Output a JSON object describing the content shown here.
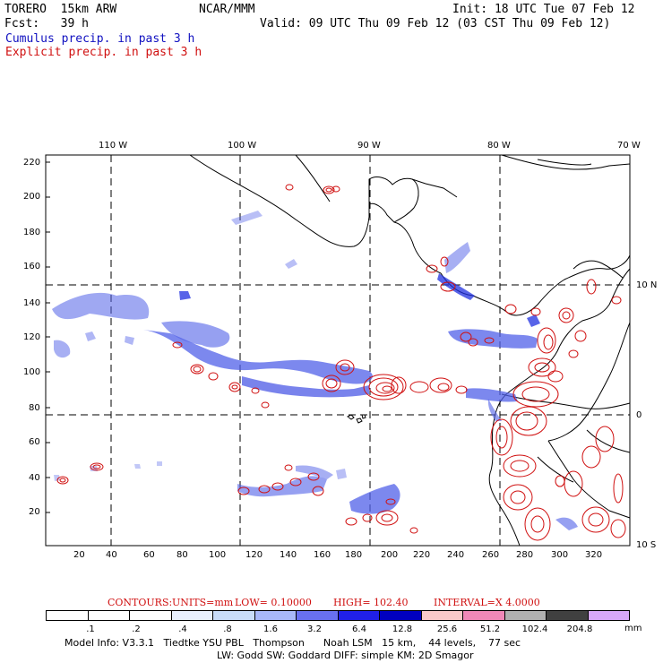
{
  "header": {
    "model": "TORERO  15km ARW",
    "org": "NCAR/MMM",
    "init": "Init: 18 UTC Tue 07 Feb 12",
    "fcst": "Fcst:   39 h",
    "valid": "Valid: 09 UTC Thu 09 Feb 12 (03 CST Thu 09 Feb 12)",
    "cumulus": "Cumulus precip. in past 3 h",
    "explicit": "Explicit precip. in past 3 h"
  },
  "axes": {
    "lon_labels": [
      "110 W",
      "100 W",
      "90 W",
      "80 W",
      "70 W"
    ],
    "lat_labels": [
      "10 N",
      "0",
      "10 S"
    ],
    "y_ticks": [
      "220",
      "200",
      "180",
      "160",
      "140",
      "120",
      "100",
      "80",
      "60",
      "40",
      "20"
    ],
    "x_ticks": [
      "20",
      "40",
      "60",
      "80",
      "100",
      "120",
      "140",
      "160",
      "180",
      "200",
      "220",
      "240",
      "260",
      "280",
      "300",
      "320"
    ]
  },
  "contours": {
    "label": "CONTOURS:",
    "units": "UNITS=mm",
    "low": "LOW= 0.10000",
    "high": "HIGH= 102.40",
    "interval": "INTERVAL=X 4.0000"
  },
  "colorbar": {
    "labels": [
      ".1",
      ".2",
      ".4",
      ".8",
      "1.6",
      "3.2",
      "6.4",
      "12.8",
      "25.6",
      "51.2",
      "102.4",
      "204.8"
    ],
    "unit": "mm",
    "colors": [
      "#ffffff",
      "#ffffff",
      "#ffffff",
      "#e8f0ff",
      "#c8dcf8",
      "#a8b8f8",
      "#6870f0",
      "#2020e8",
      "#0000c0",
      "#f8c8c8",
      "#f088b8",
      "#b0b0b0",
      "#404040",
      "#d8a8f8"
    ]
  },
  "footer": {
    "line1": "Model Info: V3.3.1   Tiedtke YSU PBL   Thompson      Noah LSM   15 km,    44 levels,    77 sec",
    "line2": "LW: Godd SW: Goddard DIFF: simple KM: 2D Smagor"
  },
  "colors": {
    "cumulus": "#1010c0",
    "explicit": "#d01010"
  }
}
